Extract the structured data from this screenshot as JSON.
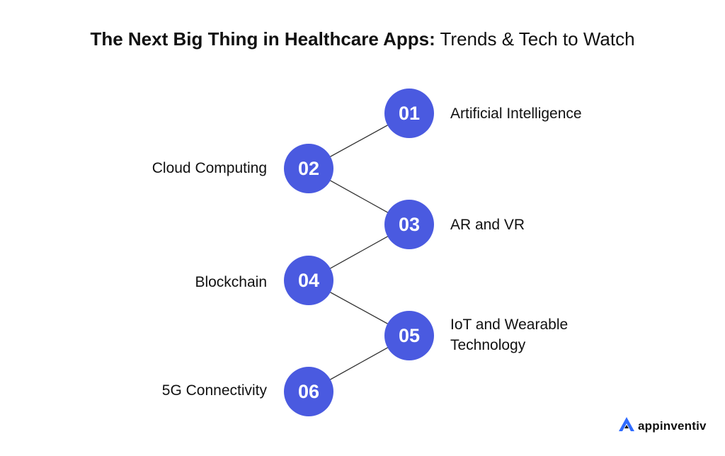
{
  "title": {
    "bold": "The Next Big Thing in Healthcare Apps:",
    "light": "Trends & Tech to Watch"
  },
  "colors": {
    "node": "#4a5ae0",
    "connector": "#333333",
    "logo_accent": "#2f6bff"
  },
  "steps": [
    {
      "number": "01",
      "label": "Artificial Intelligence"
    },
    {
      "number": "02",
      "label": "Cloud Computing"
    },
    {
      "number": "03",
      "label": "AR and VR"
    },
    {
      "number": "04",
      "label": "Blockchain"
    },
    {
      "number": "05",
      "label": "IoT and Wearable Technology"
    },
    {
      "number": "06",
      "label": "5G Connectivity"
    }
  ],
  "logo": {
    "text": "appinventiv",
    "icon": "appinventiv-a-icon"
  }
}
